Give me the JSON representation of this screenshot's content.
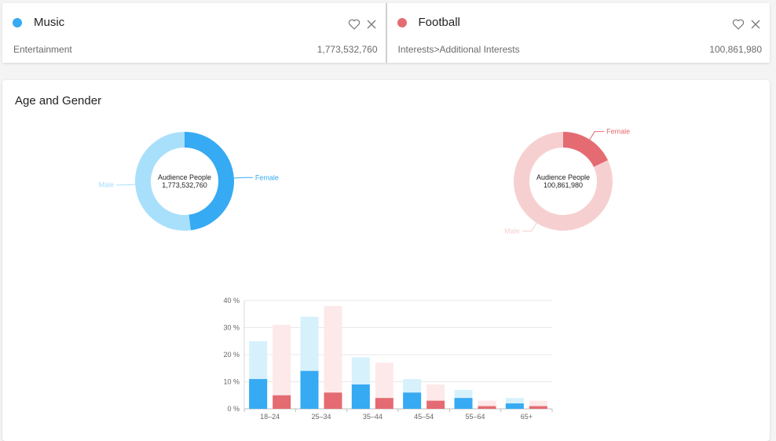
{
  "interests": [
    {
      "name": "Music",
      "category": "Entertainment",
      "audience_size": "1,773,532,760",
      "color": "#36aaf3",
      "light_color": "#a8e0fb"
    },
    {
      "name": "Football",
      "category": "Interests>Additional Interests",
      "audience_size": "100,861,980",
      "color": "#e46b72",
      "light_color": "#f6d0d0"
    }
  ],
  "icons": {
    "favorite": "heart-outline-icon",
    "remove": "close-icon"
  },
  "panel": {
    "title": "Age and Gender"
  },
  "chart_data": [
    {
      "type": "pie",
      "donut": true,
      "center_label": "Audience People",
      "center_value": "1,773,532,760",
      "slices": [
        {
          "label": "Female",
          "value": 48,
          "color": "#36aaf3"
        },
        {
          "label": "Male",
          "value": 52,
          "color": "#a8e0fb"
        }
      ]
    },
    {
      "type": "pie",
      "donut": true,
      "center_label": "Audience People",
      "center_value": "100,861,980",
      "slices": [
        {
          "label": "Female",
          "value": 18,
          "color": "#e46b72"
        },
        {
          "label": "Male",
          "value": 82,
          "color": "#f6d0d0"
        }
      ]
    },
    {
      "type": "bar",
      "stacked_overlay": true,
      "categories": [
        "18–24",
        "25–34",
        "35–44",
        "45–54",
        "55–64",
        "65+"
      ],
      "y_ticks": [
        "0 %",
        "10 %",
        "20 %",
        "30 %",
        "40 %"
      ],
      "ylim": [
        0,
        40
      ],
      "grid": true,
      "series": [
        {
          "group": "Music",
          "total": [
            25,
            34,
            19,
            11,
            7,
            4
          ],
          "female": [
            11,
            14,
            9,
            6,
            4,
            2
          ],
          "total_color": "#d6f1fc",
          "female_color": "#36aaf3"
        },
        {
          "group": "Football",
          "total": [
            31,
            38,
            17,
            9,
            3,
            3
          ],
          "female": [
            5,
            6,
            4,
            3,
            1,
            1
          ],
          "total_color": "#fde9e9",
          "female_color": "#e46b72"
        }
      ]
    }
  ]
}
